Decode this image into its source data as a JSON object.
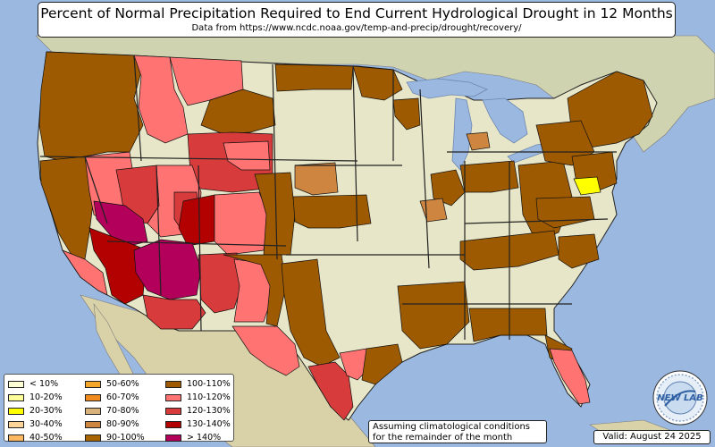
{
  "title": "Percent of Normal Precipitation Required to End Current Hydrological Drought in 12 Months",
  "subtitle": "Data from https://www.ncdc.noaa.gov/temp-and-precip/drought/recovery/",
  "legend": [
    {
      "label": "< 10%",
      "color": "#ffffd6"
    },
    {
      "label": "10-20%",
      "color": "#ffff99"
    },
    {
      "label": "20-30%",
      "color": "#ffff00"
    },
    {
      "label": "30-40%",
      "color": "#fcd49a"
    },
    {
      "label": "40-50%",
      "color": "#fbb860"
    },
    {
      "label": "50-60%",
      "color": "#f4a62a"
    },
    {
      "label": "60-70%",
      "color": "#f08a1c"
    },
    {
      "label": "70-80%",
      "color": "#d8b27a"
    },
    {
      "label": "80-90%",
      "color": "#cd853f"
    },
    {
      "label": "90-100%",
      "color": "#a86400"
    },
    {
      "label": "100-110%",
      "color": "#9e5a00"
    },
    {
      "label": "110-120%",
      "color": "#ff7373"
    },
    {
      "label": "120-130%",
      "color": "#d83b3b"
    },
    {
      "label": "130-140%",
      "color": "#b30000"
    },
    {
      "label": "> 140%",
      "color": "#b3005a"
    }
  ],
  "note": {
    "line1": "Assuming climatological conditions",
    "line2": "for the remainder of the month"
  },
  "valid": "Valid: August 24 2025",
  "logo": {
    "text": "NEW LAB"
  },
  "colors": {
    "ocean": "#9bb8e0",
    "land": "#e8e6c8",
    "state_border": "#222222"
  }
}
